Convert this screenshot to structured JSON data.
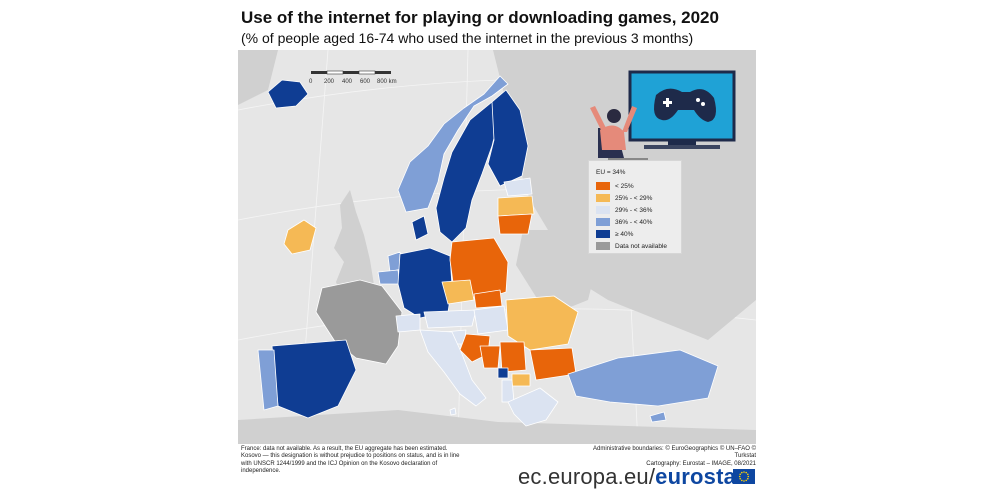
{
  "title": "Use of the internet for playing or downloading games, 2020",
  "subtitle": "(% of people aged 16-74 who used the internet in the previous 3 months)",
  "scale": {
    "ticks": [
      "0",
      "200",
      "400",
      "600",
      "800 km"
    ]
  },
  "legend": {
    "header": "EU = 34%",
    "items": [
      {
        "label": "< 25%",
        "color": "#e8650a"
      },
      {
        "label": "25% - < 29%",
        "color": "#f5b955"
      },
      {
        "label": "29% - < 36%",
        "color": "#dbe3f1"
      },
      {
        "label": "36% - < 40%",
        "color": "#7f9fd6"
      },
      {
        "label": "≥ 40%",
        "color": "#0f3d93"
      },
      {
        "label": "Data not available",
        "color": "#9a9a9a"
      }
    ]
  },
  "footnote": "France: data not available. As a result, the EU aggregate has been estimated. Kosovo — this designation is without prejudice to positions on status, and is in line with UNSCR 1244/1999 and the ICJ Opinion on the Kosovo declaration of independence.",
  "credits": {
    "line1": "Administrative boundaries: © EuroGeographics © UN–FAO © Turkstat",
    "line2": "Cartography: Eurostat – IMAGE, 08/2021"
  },
  "branding": {
    "url_part": "ec.europa.eu/",
    "brand_part": "eurostat"
  },
  "colors": {
    "lt25": "#e8650a",
    "c25_29": "#f5b955",
    "c29_36": "#dbe3f1",
    "c36_40": "#7f9fd6",
    "ge40": "#0f3d93",
    "na": "#9a9a9a",
    "non_covered": "#d0d0d0",
    "sea": "#e6e6e6"
  },
  "countries": [
    {
      "name": "Iceland",
      "class": "≥ 40%"
    },
    {
      "name": "Norway",
      "class": "36% - < 40%"
    },
    {
      "name": "Sweden",
      "class": "≥ 40%"
    },
    {
      "name": "Finland",
      "class": "≥ 40%"
    },
    {
      "name": "Denmark",
      "class": "≥ 40%"
    },
    {
      "name": "Estonia",
      "class": "29% - < 36%"
    },
    {
      "name": "Latvia",
      "class": "25% - < 29%"
    },
    {
      "name": "Lithuania",
      "class": "< 25%"
    },
    {
      "name": "Ireland",
      "class": "25% - < 29%"
    },
    {
      "name": "Netherlands",
      "class": "36% - < 40%"
    },
    {
      "name": "Belgium",
      "class": "36% - < 40%"
    },
    {
      "name": "Germany",
      "class": "≥ 40%"
    },
    {
      "name": "Poland",
      "class": "< 25%"
    },
    {
      "name": "France",
      "class": "Data not available"
    },
    {
      "name": "Czechia",
      "class": "25% - < 29%"
    },
    {
      "name": "Slovakia",
      "class": "< 25%"
    },
    {
      "name": "Austria",
      "class": "29% - < 36%"
    },
    {
      "name": "Switzerland",
      "class": "29% - < 36%"
    },
    {
      "name": "Hungary",
      "class": "29% - < 36%"
    },
    {
      "name": "Romania",
      "class": "25% - < 29%"
    },
    {
      "name": "Slovenia",
      "class": "29% - < 36%"
    },
    {
      "name": "Croatia",
      "class": "< 25%"
    },
    {
      "name": "Bosnia and Herzegovina",
      "class": "< 25%"
    },
    {
      "name": "Serbia",
      "class": "< 25%"
    },
    {
      "name": "Montenegro",
      "class": "≥ 40%"
    },
    {
      "name": "Bulgaria",
      "class": "< 25%"
    },
    {
      "name": "North Macedonia",
      "class": "25% - < 29%"
    },
    {
      "name": "Albania",
      "class": "29% - < 36%"
    },
    {
      "name": "Greece",
      "class": "29% - < 36%"
    },
    {
      "name": "Italy",
      "class": "29% - < 36%"
    },
    {
      "name": "Spain",
      "class": "≥ 40%"
    },
    {
      "name": "Portugal",
      "class": "36% - < 40%"
    },
    {
      "name": "Turkey",
      "class": "36% - < 40%"
    },
    {
      "name": "Malta",
      "class": "29% - < 36%"
    },
    {
      "name": "Cyprus",
      "class": "36% - < 40%"
    }
  ]
}
